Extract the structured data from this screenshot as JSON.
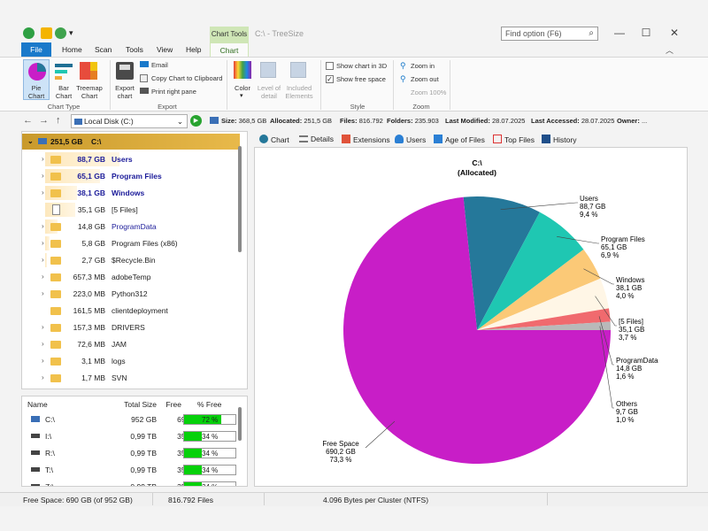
{
  "window": {
    "title": "C:\\ - TreeSize",
    "chart_tools_label": "Chart Tools",
    "search_placeholder": "Find option (F6)"
  },
  "tabs": [
    "File",
    "Home",
    "Scan",
    "Tools",
    "View",
    "Help",
    "Chart"
  ],
  "ribbon": {
    "chart_type": {
      "pie": "Pie Chart",
      "bar": "Bar Chart",
      "treemap": "Treemap Chart",
      "group": "Chart Type"
    },
    "export": {
      "export_chart": "Export chart",
      "email": "Email",
      "copy": "Copy Chart to Clipboard",
      "print": "Print right pane",
      "group": "Export"
    },
    "color": {
      "color": "Color",
      "level": "Level of detail",
      "included": "Included Elements"
    },
    "style": {
      "show3d": "Show chart in 3D",
      "show3d_checked": false,
      "showfree": "Show free space",
      "showfree_checked": true,
      "group": "Style"
    },
    "zoom": {
      "zoom_in": "Zoom in",
      "zoom_out": "Zoom out",
      "zoom_level": "Zoom 100%",
      "group": "Zoom"
    }
  },
  "addressbar": {
    "drive": "Local Disk (C:)",
    "size_label": "Size:",
    "size": "368,5 GB",
    "allocated_label": "Allocated:",
    "allocated": "251,5 GB",
    "files_label": "Files:",
    "files": "816.792",
    "folders_label": "Folders:",
    "folders": "235.903",
    "lastmod_label": "Last Modified:",
    "lastmod": "28.07.2025",
    "lastacc_label": "Last Accessed:",
    "lastacc": "28.07.2025",
    "owner_label": "Owner:",
    "owner": "..."
  },
  "tree": {
    "root_size": "251,5 GB",
    "root_name": "C:\\",
    "rows": [
      {
        "size": "88,7 GB",
        "name": "Users",
        "bold": true,
        "exp": true,
        "icon": "folder",
        "bar": 0.35
      },
      {
        "size": "65,1 GB",
        "name": "Program Files",
        "bold": true,
        "exp": true,
        "icon": "folder",
        "bar": 0.26
      },
      {
        "size": "38,1 GB",
        "name": "Windows",
        "bold": true,
        "exp": true,
        "icon": "folder",
        "bar": 0.15
      },
      {
        "size": "35,1 GB",
        "name": "[5 Files]",
        "bold": false,
        "exp": false,
        "icon": "file",
        "bar": 0.14
      },
      {
        "size": "14,8 GB",
        "name": "ProgramData",
        "bold": false,
        "exp": true,
        "icon": "folder",
        "bar": 0.06,
        "blue": true
      },
      {
        "size": "5,8 GB",
        "name": "Program Files (x86)",
        "bold": false,
        "exp": true,
        "icon": "folder",
        "bar": 0.02
      },
      {
        "size": "2,7 GB",
        "name": "$Recycle.Bin",
        "bold": false,
        "exp": true,
        "icon": "folder",
        "bar": 0.01
      },
      {
        "size": "657,3 MB",
        "name": "adobeTemp",
        "bold": false,
        "exp": true,
        "icon": "folder",
        "bar": 0
      },
      {
        "size": "223,0 MB",
        "name": "Python312",
        "bold": false,
        "exp": true,
        "icon": "folder",
        "bar": 0
      },
      {
        "size": "161,5 MB",
        "name": "clientdeployment",
        "bold": false,
        "exp": false,
        "icon": "folder",
        "bar": 0
      },
      {
        "size": "157,3 MB",
        "name": "DRIVERS",
        "bold": false,
        "exp": true,
        "icon": "folder",
        "bar": 0
      },
      {
        "size": "72,6 MB",
        "name": "JAM",
        "bold": false,
        "exp": true,
        "icon": "folder",
        "bar": 0
      },
      {
        "size": "3,1 MB",
        "name": "logs",
        "bold": false,
        "exp": true,
        "icon": "folder",
        "bar": 0
      },
      {
        "size": "1,7 MB",
        "name": "SVN",
        "bold": false,
        "exp": true,
        "icon": "folder",
        "bar": 0
      }
    ]
  },
  "drives": {
    "headers": {
      "name": "Name",
      "total": "Total Size",
      "free": "Free",
      "pct": "% Free"
    },
    "rows": [
      {
        "name": "C:\\",
        "total": "952 GB",
        "free": "690 GB",
        "pct": "72 %",
        "pct_value": 0.72
      },
      {
        "name": "I:\\",
        "total": "0,99 TB",
        "free": "351 GB",
        "pct": "34 %",
        "pct_value": 0.34
      },
      {
        "name": "R:\\",
        "total": "0,99 TB",
        "free": "351 GB",
        "pct": "34 %",
        "pct_value": 0.34
      },
      {
        "name": "T:\\",
        "total": "0,99 TB",
        "free": "351 GB",
        "pct": "34 %",
        "pct_value": 0.34
      },
      {
        "name": "Z:\\",
        "total": "0,99 TB",
        "free": "351 GB",
        "pct": "34 %",
        "pct_value": 0.34
      }
    ]
  },
  "right_tabs": [
    "Chart",
    "Details",
    "Extensions",
    "Users",
    "Age of Files",
    "Top Files",
    "History"
  ],
  "chart_data": {
    "type": "pie",
    "title": "C:\\",
    "subtitle": "(Allocated)",
    "slices": [
      {
        "name": "Users",
        "size": "88,7 GB",
        "percent": 9.4,
        "percent_label": "9,4 %",
        "color": "#25789a"
      },
      {
        "name": "Program Files",
        "size": "65,1 GB",
        "percent": 6.9,
        "percent_label": "6,9 %",
        "color": "#1fc7b2"
      },
      {
        "name": "Windows",
        "size": "38,1 GB",
        "percent": 4.0,
        "percent_label": "4,0 %",
        "color": "#fbc977"
      },
      {
        "name": "[5 Files]",
        "size": "35,1 GB",
        "percent": 3.7,
        "percent_label": "3,7 %",
        "color": "#fff6e6"
      },
      {
        "name": "ProgramData",
        "size": "14,8 GB",
        "percent": 1.6,
        "percent_label": "1,6 %",
        "color": "#f06a6e"
      },
      {
        "name": "Others",
        "size": "9,7 GB",
        "percent": 1.0,
        "percent_label": "1,0 %",
        "color": "#b9b9b9"
      },
      {
        "name": "Free Space",
        "size": "690,2 GB",
        "percent": 73.3,
        "percent_label": "73,3 %",
        "color": "#c81ec7"
      }
    ]
  },
  "status": {
    "free_space": "Free Space: 690 GB  (of 952 GB)",
    "files": "816.792 Files",
    "cluster": "4.096 Bytes per Cluster (NTFS)"
  }
}
